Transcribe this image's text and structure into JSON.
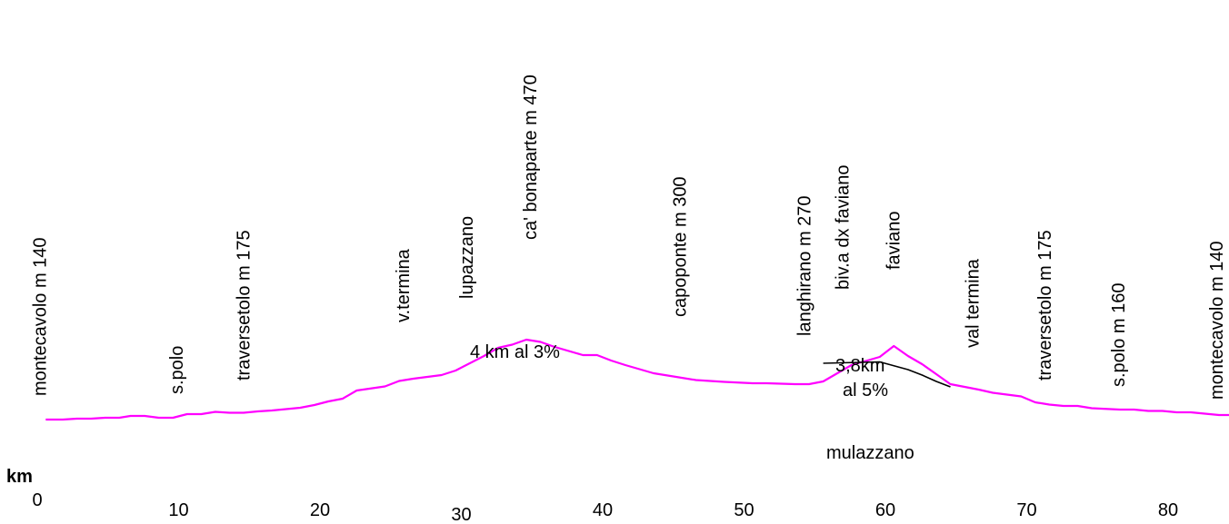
{
  "chart_data": {
    "type": "line",
    "title": "",
    "xlabel": "km",
    "ylabel": "",
    "xlim": [
      0,
      84
    ],
    "grid": false,
    "legend": "none",
    "x_ticks": [
      {
        "value": 0,
        "label": "0"
      },
      {
        "value": 10,
        "label": "10"
      },
      {
        "value": 20,
        "label": "20"
      },
      {
        "value": 30,
        "label": "30"
      },
      {
        "value": 40,
        "label": "40"
      },
      {
        "value": 50,
        "label": "50"
      },
      {
        "value": 60,
        "label": "60"
      },
      {
        "value": 70,
        "label": "70"
      },
      {
        "value": 80,
        "label": "80"
      }
    ],
    "series": [
      {
        "color": "#ff00ff",
        "x": [
          0.6,
          1.8,
          2.8,
          3.8,
          4.8,
          5.8,
          6.6,
          7.6,
          8.6,
          9.6,
          10.6,
          11.6,
          12.6,
          13.6,
          14.6,
          15.6,
          16.6,
          18.6,
          19.6,
          20.6,
          21.6,
          22.6,
          24.6,
          25.6,
          26.6,
          28.6,
          29.6,
          30.6,
          31.6,
          32.6,
          33.6,
          34.6,
          35.6,
          36.6,
          38.6,
          39.6,
          40.6,
          41.6,
          43.6,
          44.6,
          46.6,
          48.6,
          50.6,
          51.6,
          53.6,
          54.6,
          55.6,
          57.6,
          59.6,
          60.6,
          61.6,
          62.6,
          63.6,
          64.6,
          65.6,
          66.6,
          67.6,
          69.6,
          70.6,
          71.6,
          72.6,
          73.6,
          74.6,
          76.6,
          77.6,
          78.6,
          79.6,
          80.6,
          81.6,
          82.6,
          83.6,
          84.6
        ],
        "y": [
          140,
          140,
          142,
          142,
          144,
          144,
          148,
          148,
          144,
          144,
          152,
          152,
          157,
          155,
          155,
          158,
          160,
          166,
          172,
          180,
          186,
          204,
          213,
          225,
          230,
          238,
          248,
          264,
          280,
          298,
          305,
          316,
          311,
          300,
          282,
          282,
          270,
          260,
          242,
          237,
          227,
          223,
          220,
          220,
          218,
          218,
          224,
          260,
          278,
          302,
          280,
          262,
          240,
          218,
          212,
          206,
          199,
          191,
          178,
          173,
          170,
          170,
          165,
          162,
          162,
          159,
          159,
          156,
          156,
          153,
          150,
          150
        ]
      },
      {
        "color": "#000000",
        "x": [
          55.6,
          59.6,
          61.6,
          62.6,
          63.6,
          64.6
        ],
        "y": [
          264,
          267,
          250,
          238,
          224,
          212
        ]
      }
    ],
    "place_labels": [
      {
        "text": "montecavolo m 140",
        "km": 0.6
      },
      {
        "text": "s.polo",
        "km": 10.3
      },
      {
        "text": "traversetolo m 175",
        "km": 15.0
      },
      {
        "text": "v.termina",
        "km": 26.3
      },
      {
        "text": "lupazzano",
        "km": 30.8
      },
      {
        "text": "ca' bonaparte  m 470",
        "km": 35.3
      },
      {
        "text": "capoponte m 300",
        "km": 45.9
      },
      {
        "text": "langhirano m 270",
        "km": 54.7
      },
      {
        "text": "biv.a dx faviano",
        "km": 57.4
      },
      {
        "text": "faviano",
        "km": 61.0
      },
      {
        "text": "val termina",
        "km": 66.6
      },
      {
        "text": "traversetolo m 175",
        "km": 71.7
      },
      {
        "text": "s.polo m 160",
        "km": 76.9
      },
      {
        "text": "montecavolo  m 140",
        "km": 85.0
      }
    ],
    "annotations": [
      "4 km al 3%",
      "3,8km",
      "al 5%",
      "mulazzano"
    ]
  }
}
